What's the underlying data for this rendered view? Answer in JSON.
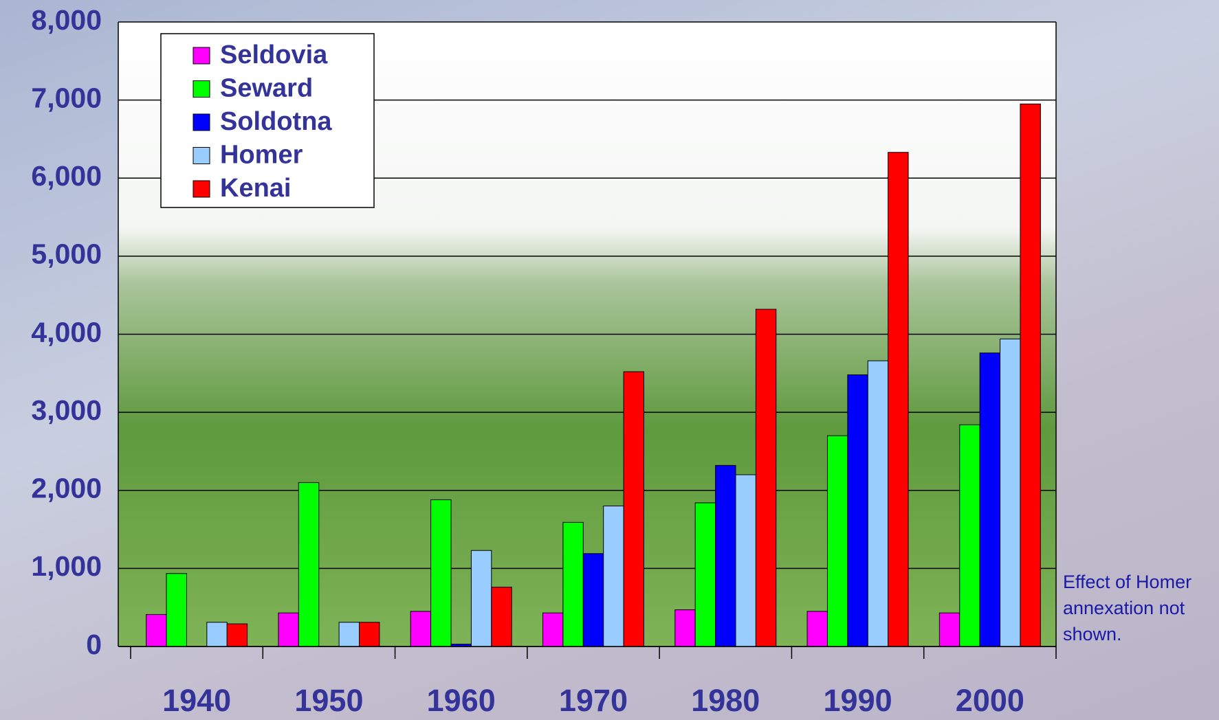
{
  "chart_data": {
    "type": "bar",
    "categories": [
      "1940",
      "1950",
      "1960",
      "1970",
      "1980",
      "1990",
      "2000"
    ],
    "series": [
      {
        "name": "Seldovia",
        "color": "#ff00ff",
        "values": [
          410,
          430,
          450,
          430,
          470,
          450,
          430
        ]
      },
      {
        "name": "Seward",
        "color": "#00ff00",
        "values": [
          935,
          2100,
          1880,
          1590,
          1840,
          2700,
          2840
        ]
      },
      {
        "name": "Soldotna",
        "color": "#0000ff",
        "values": [
          null,
          null,
          30,
          1190,
          2320,
          3480,
          3760
        ]
      },
      {
        "name": "Homer",
        "color": "#99ccff",
        "values": [
          310,
          310,
          1230,
          1800,
          2200,
          3660,
          3940
        ]
      },
      {
        "name": "Kenai",
        "color": "#ff0000",
        "values": [
          290,
          310,
          760,
          3520,
          4320,
          6330,
          6950
        ]
      }
    ],
    "ylim": [
      0,
      8000
    ],
    "yticks": [
      0,
      {
        "value": 1000,
        "label": "1,000"
      },
      {
        "value": 2000,
        "label": "2,000"
      },
      {
        "value": 3000,
        "label": "3,000"
      },
      {
        "value": 4000,
        "label": "4,000"
      },
      {
        "value": 5000,
        "label": "5,000"
      },
      {
        "value": 6000,
        "label": "6,000"
      },
      {
        "value": 7000,
        "label": "7,000"
      },
      {
        "value": 8000,
        "label": "8,000"
      }
    ],
    "grid": true,
    "legend": "upper-left",
    "annotation": "Effect of Homer annexation not shown."
  }
}
